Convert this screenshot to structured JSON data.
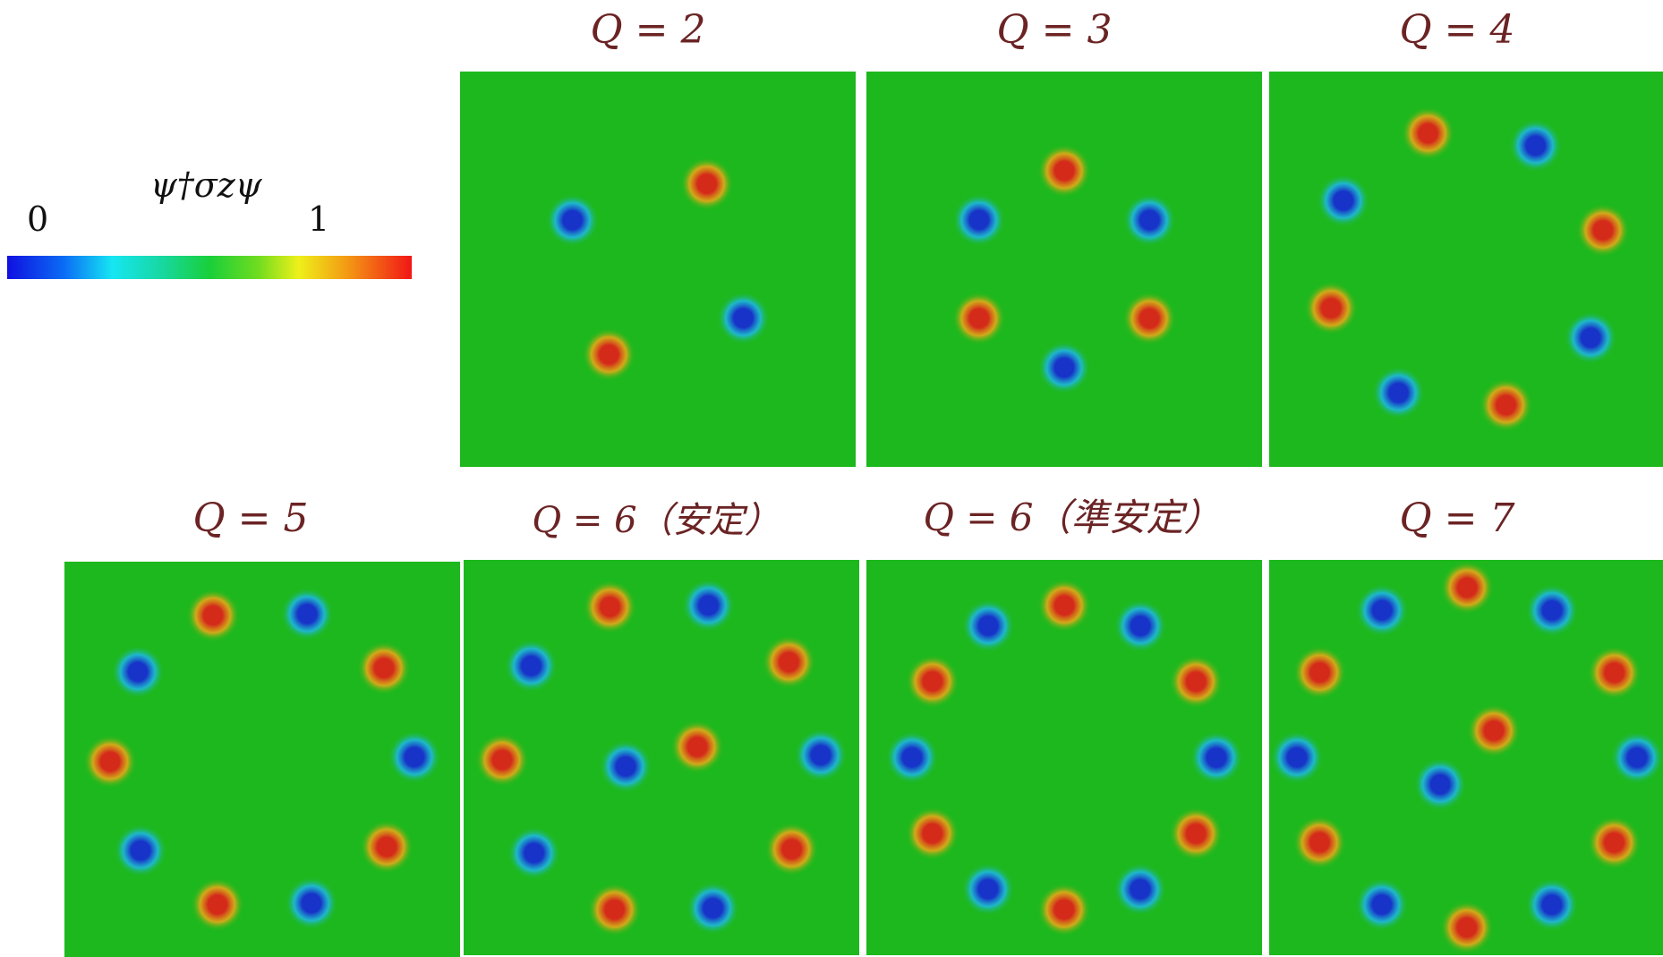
{
  "colorbar": {
    "title": "ψ†σzψ",
    "min_label": "0",
    "max_label": "1",
    "colors": [
      "#1010e0",
      "#16e6f2",
      "#19cf3a",
      "#eef01a",
      "#f21616"
    ]
  },
  "colors": {
    "background_field": "#1db81d",
    "high_spot": "#d42a1a",
    "low_spot": "#1733c8",
    "title_color": "#6b2324"
  },
  "panels": [
    {
      "id": "q2",
      "title": "Q = 2",
      "count": 2
    },
    {
      "id": "q3",
      "title": "Q = 3",
      "count": 3
    },
    {
      "id": "q4",
      "title": "Q = 4",
      "count": 4
    },
    {
      "id": "q5",
      "title": "Q = 5",
      "count": 5
    },
    {
      "id": "q6-stable",
      "title": "Q = 6（安定）",
      "count": 6
    },
    {
      "id": "q6-meta",
      "title": "Q = 6（準安定）",
      "count": 6
    },
    {
      "id": "q7",
      "title": "Q = 7",
      "count": 7
    }
  ]
}
